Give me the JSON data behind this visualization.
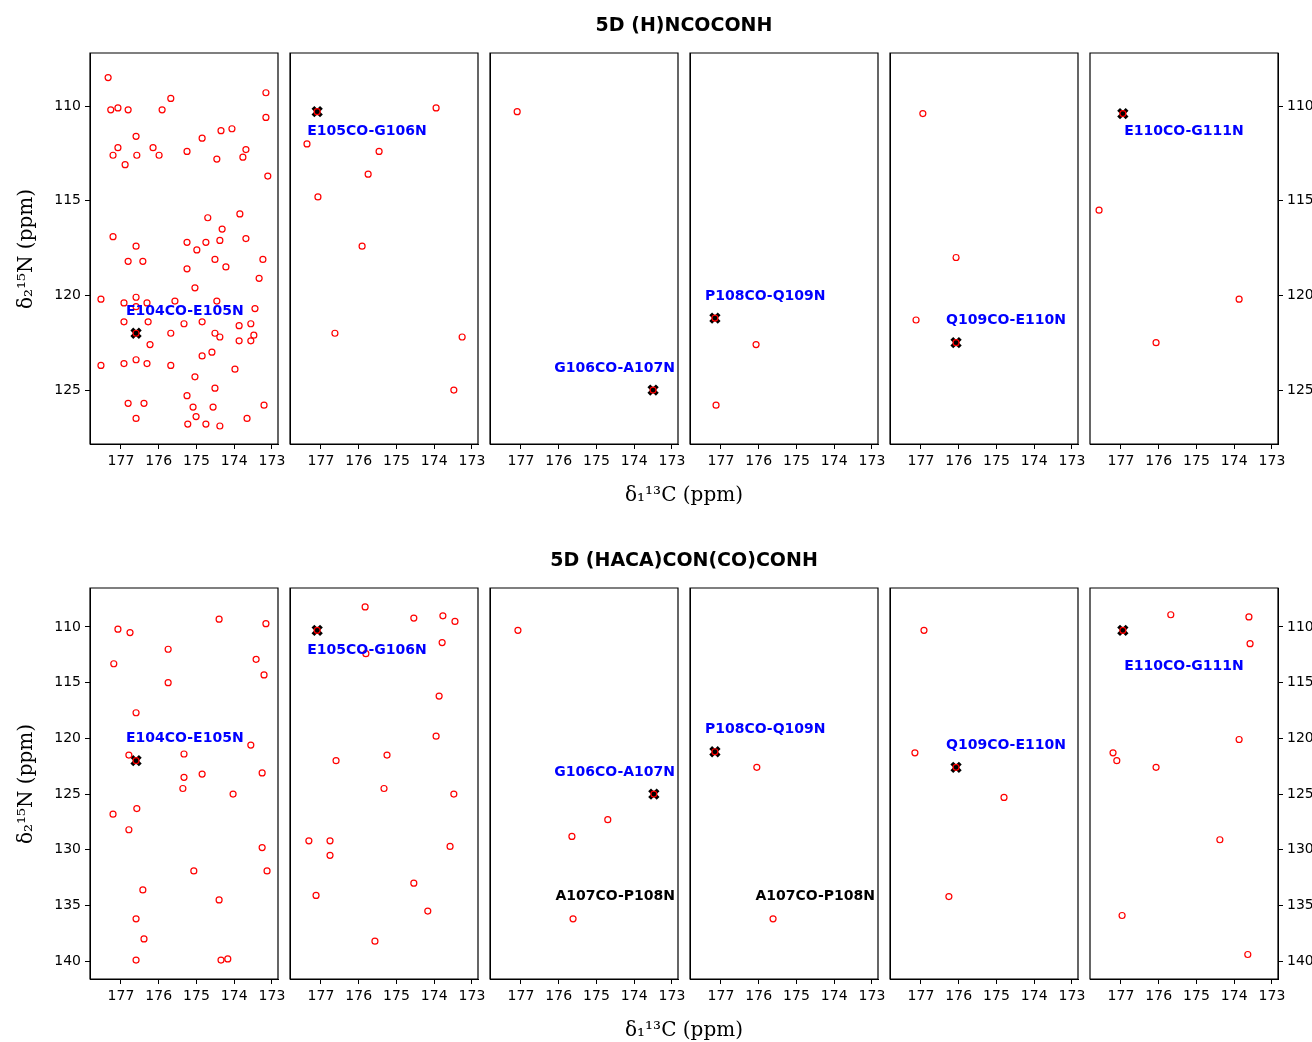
{
  "chart_data": [
    {
      "type": "scatter",
      "ylabel": "δ₂¹⁵N (ppm)",
      "xlim": [
        177.82,
        172.84
      ],
      "xticks": [
        177,
        176,
        175,
        174,
        173
      ],
      "ylim": [
        127.85,
        107.2
      ],
      "yticks": [
        110,
        115,
        120,
        125
      ],
      "series": [
        {
          "color": "#ff0000",
          "marker": "circle",
          "x": [
            177.34,
            177.08,
            177.27,
            176.81,
            175.91,
            175.68,
            173.16,
            173.16,
            174.35,
            174.06,
            174.85,
            176.6,
            177.08,
            176.15,
            177.21,
            176.58,
            175.99,
            175.25,
            174.46,
            173.69,
            173.77,
            176.89,
            173.11,
            174.7,
            173.85,
            174.32,
            177.21,
            176.6,
            175.25,
            174.75,
            174.99,
            174.38,
            173.69,
            176.81,
            176.42,
            175.25,
            174.51,
            174.22,
            173.24,
            173.34,
            175.04,
            177.53,
            176.92,
            176.6,
            176.6,
            176.31,
            175.57,
            174.46,
            173.45,
            176.92,
            176.28,
            175.33,
            174.85,
            173.87,
            173.56,
            176.6,
            175.68,
            174.51,
            174.38,
            173.48,
            173.87,
            173.56,
            176.23,
            174.85,
            174.59,
            177.53,
            176.92,
            176.6,
            176.31,
            175.68,
            173.98,
            175.04,
            174.51,
            175.25,
            176.81,
            176.39,
            175.09,
            174.56,
            173.21,
            175.01,
            176.6,
            173.66,
            175.23,
            174.75,
            174.38
          ],
          "values": [
            108.5,
            110.1,
            110.2,
            110.2,
            110.2,
            109.6,
            109.3,
            110.6,
            111.3,
            111.2,
            111.7,
            111.6,
            112.2,
            112.2,
            112.6,
            112.6,
            112.6,
            112.4,
            112.8,
            112.3,
            112.7,
            113.1,
            113.7,
            115.9,
            115.7,
            116.5,
            116.9,
            117.4,
            117.2,
            117.2,
            117.6,
            117.1,
            117.0,
            118.2,
            118.2,
            118.6,
            118.1,
            118.5,
            118.1,
            119.1,
            119.6,
            120.2,
            120.4,
            120.1,
            120.6,
            120.4,
            120.3,
            120.3,
            120.7,
            121.4,
            121.4,
            121.5,
            121.4,
            121.6,
            121.5,
            122.0,
            122.0,
            122.0,
            122.2,
            122.1,
            122.4,
            122.4,
            122.6,
            123.2,
            123.0,
            123.7,
            123.6,
            123.4,
            123.6,
            123.7,
            123.9,
            124.3,
            124.9,
            125.3,
            125.7,
            125.7,
            125.9,
            125.9,
            125.8,
            126.4,
            126.5,
            126.5,
            126.8,
            126.8,
            126.9
          ]
        },
        {
          "color": "#000000",
          "marker": "cross",
          "x": [
            176.6
          ],
          "values": [
            122.0
          ]
        }
      ],
      "annotations": [
        {
          "text": "E104CO-E105N",
          "x": 176.6,
          "y": 122.0
        }
      ]
    },
    {
      "type": "scatter",
      "xlim": [
        177.82,
        172.84
      ],
      "xticks": [
        177,
        176,
        175,
        174,
        173
      ],
      "ylim": [
        127.85,
        107.2
      ],
      "yticks": [
        110,
        115,
        120,
        125
      ],
      "tick_labels": "x",
      "series": [
        {
          "color": "#ff0000",
          "marker": "circle",
          "x": [
            177.1,
            177.37,
            175.46,
            175.75,
            177.08,
            175.91,
            176.63,
            173.26,
            173.48,
            173.95
          ],
          "values": [
            110.3,
            112.0,
            112.4,
            113.6,
            114.8,
            117.4,
            122.0,
            122.2,
            125.0,
            110.1
          ]
        },
        {
          "color": "#000000",
          "marker": "cross",
          "x": [
            177.1
          ],
          "values": [
            110.3
          ]
        }
      ],
      "annotations": [
        {
          "text": "E105CO-G106N",
          "x": 177.1,
          "y": 110.3
        }
      ]
    },
    {
      "type": "scatter",
      "xlabel": "δ₁¹³C (ppm)",
      "xlim": [
        177.82,
        172.84
      ],
      "xticks": [
        177,
        176,
        175,
        174,
        173
      ],
      "ylim": [
        127.85,
        107.2
      ],
      "yticks": [
        110,
        115,
        120,
        125
      ],
      "tick_labels": "x",
      "series": [
        {
          "color": "#ff0000",
          "marker": "circle",
          "x": [
            177.1,
            173.5
          ],
          "values": [
            110.3,
            125.0
          ]
        },
        {
          "color": "#000000",
          "marker": "cross",
          "x": [
            173.5
          ],
          "values": [
            125.0
          ]
        }
      ],
      "annotations": [
        {
          "text": "G106CO-A107N",
          "x": 173.5,
          "y": 125.0
        }
      ]
    },
    {
      "type": "scatter",
      "title": "5D (H)NCOCONH",
      "xlim": [
        177.82,
        172.84
      ],
      "xticks": [
        177,
        176,
        175,
        174,
        173
      ],
      "ylim": [
        127.85,
        107.2
      ],
      "yticks": [
        110,
        115,
        120,
        125
      ],
      "tick_labels": "x",
      "series": [
        {
          "color": "#ff0000",
          "marker": "circle",
          "x": [
            177.16,
            176.07,
            177.13
          ],
          "values": [
            121.2,
            122.6,
            125.8
          ]
        },
        {
          "color": "#000000",
          "marker": "cross",
          "x": [
            177.16
          ],
          "values": [
            121.2
          ]
        }
      ],
      "annotations": [
        {
          "text": "P108CO-Q109N",
          "x": 177.16,
          "y": 121.2
        }
      ]
    },
    {
      "type": "scatter",
      "xlim": [
        177.82,
        172.84
      ],
      "xticks": [
        177,
        176,
        175,
        174,
        173
      ],
      "ylim": [
        127.85,
        107.2
      ],
      "yticks": [
        110,
        115,
        120,
        125
      ],
      "tick_labels": "x",
      "series": [
        {
          "color": "#ff0000",
          "marker": "circle",
          "x": [
            176.95,
            176.07,
            177.13,
            176.07
          ],
          "values": [
            110.4,
            118.0,
            121.3,
            122.5
          ]
        },
        {
          "color": "#000000",
          "marker": "cross",
          "x": [
            176.07
          ],
          "values": [
            122.5
          ]
        }
      ],
      "annotations": [
        {
          "text": "Q109CO-E110N",
          "x": 176.07,
          "y": 122.5
        }
      ]
    },
    {
      "type": "scatter",
      "xlim": [
        177.82,
        172.84
      ],
      "xticks": [
        177,
        176,
        175,
        174,
        173
      ],
      "y2lim": [
        127.85,
        107.2
      ],
      "y2ticks": [
        110,
        115,
        120,
        125
      ],
      "series": [
        {
          "color": "#ff0000",
          "marker": "circle",
          "axis": "y2",
          "x": [
            176.95,
            177.58,
            173.87,
            176.07
          ],
          "values": [
            110.4,
            115.5,
            120.2,
            122.5
          ]
        },
        {
          "color": "#000000",
          "marker": "cross",
          "axis": "y2",
          "x": [
            176.95
          ],
          "values": [
            110.4
          ]
        }
      ],
      "annotations": [
        "E110CO-G111N"
      ]
    },
    {
      "type": "scatter",
      "ylabel": "δ₂¹⁵N (ppm)",
      "xlim": [
        177.82,
        172.84
      ],
      "xticks": [
        177,
        176,
        175,
        174,
        173
      ],
      "ylim": [
        141.6,
        106.5
      ],
      "yticks": [
        110,
        115,
        120,
        125,
        130,
        135,
        140
      ],
      "series": [
        {
          "color": "#ff0000",
          "marker": "circle",
          "x": [
            177.08,
            176.76,
            174.4,
            173.16,
            175.75,
            177.19,
            173.42,
            173.21,
            175.75,
            176.6,
            173.56,
            176.79,
            176.6,
            175.33,
            174.85,
            175.33,
            175.36,
            173.26,
            174.03,
            176.58,
            177.21,
            176.79,
            173.26,
            173.13,
            175.07,
            176.42,
            174.4,
            176.6,
            176.39,
            176.6,
            174.35,
            174.17
          ],
          "values": [
            110.2,
            110.5,
            109.3,
            109.7,
            112.0,
            113.3,
            112.9,
            114.3,
            115.0,
            117.7,
            120.6,
            121.5,
            122.0,
            121.4,
            123.2,
            123.5,
            124.5,
            123.1,
            125.0,
            126.3,
            126.8,
            128.2,
            129.8,
            131.9,
            131.9,
            133.6,
            134.5,
            136.2,
            138.0,
            139.9,
            139.9,
            139.8
          ]
        },
        {
          "color": "#000000",
          "marker": "cross",
          "x": [
            176.6
          ],
          "values": [
            122.0
          ]
        }
      ],
      "annotations": [
        {
          "text": "E104CO-E105N",
          "x": 176.6,
          "y": 122.0
        }
      ]
    },
    {
      "type": "scatter",
      "xlim": [
        177.82,
        172.84
      ],
      "xticks": [
        177,
        176,
        175,
        174,
        173
      ],
      "ylim": [
        141.6,
        106.5
      ],
      "yticks": [
        110,
        115,
        120,
        125,
        130,
        135,
        140
      ],
      "tick_labels": "x",
      "series": [
        {
          "color": "#ff0000",
          "marker": "circle",
          "x": [
            177.1,
            175.83,
            174.54,
            173.77,
            173.45,
            173.79,
            175.81,
            173.87,
            173.95,
            176.6,
            175.25,
            175.33,
            173.48,
            177.32,
            176.76,
            176.76,
            173.58,
            174.54,
            177.13,
            174.17,
            175.57
          ],
          "values": [
            110.3,
            108.2,
            109.2,
            109.0,
            109.5,
            111.4,
            112.4,
            116.2,
            119.8,
            122.0,
            121.5,
            124.5,
            125.0,
            129.2,
            129.2,
            130.5,
            129.7,
            133.0,
            134.1,
            135.5,
            138.2
          ]
        },
        {
          "color": "#000000",
          "marker": "cross",
          "x": [
            177.1
          ],
          "values": [
            110.3
          ]
        }
      ],
      "annotations": [
        {
          "text": "E105CO-G106N",
          "x": 177.1,
          "y": 110.3
        }
      ]
    },
    {
      "type": "scatter",
      "xlabel": "δ₁¹³C (ppm)",
      "xlim": [
        177.82,
        172.84
      ],
      "xticks": [
        177,
        176,
        175,
        174,
        173
      ],
      "ylim": [
        141.6,
        106.5
      ],
      "yticks": [
        110,
        115,
        120,
        125,
        130,
        135,
        140
      ],
      "tick_labels": "x",
      "series": [
        {
          "color": "#ff0000",
          "marker": "circle",
          "x": [
            177.08,
            173.48,
            174.7,
            175.65,
            175.62
          ],
          "values": [
            110.3,
            125.0,
            127.3,
            128.8,
            136.2
          ]
        },
        {
          "color": "#000000",
          "marker": "cross",
          "x": [
            173.48
          ],
          "values": [
            125.0
          ]
        }
      ],
      "annotations": [
        {
          "text": "G106CO-A107N",
          "x": 173.48,
          "y": 125.0
        },
        {
          "text": "A107CO-P108N",
          "x": 175.62,
          "y": 136.2
        }
      ]
    },
    {
      "type": "scatter",
      "title": "5D (HACA)CON(CO)CONH",
      "xlim": [
        177.82,
        172.84
      ],
      "xticks": [
        177,
        176,
        175,
        174,
        173
      ],
      "ylim": [
        141.6,
        106.5
      ],
      "yticks": [
        110,
        115,
        120,
        125,
        130,
        135,
        140
      ],
      "tick_labels": "x",
      "series": [
        {
          "color": "#ff0000",
          "marker": "circle",
          "x": [
            177.16,
            176.05,
            175.62
          ],
          "values": [
            121.2,
            122.6,
            136.2
          ]
        },
        {
          "color": "#000000",
          "marker": "cross",
          "x": [
            177.16
          ],
          "values": [
            121.2
          ]
        }
      ],
      "annotations": [
        {
          "text": "P108CO-Q109N",
          "x": 177.16,
          "y": 121.2
        },
        {
          "text": "A107CO-P108N",
          "x": 175.62,
          "y": 136.2
        }
      ]
    },
    {
      "type": "scatter",
      "xlim": [
        177.82,
        172.84
      ],
      "xticks": [
        177,
        176,
        175,
        174,
        173
      ],
      "ylim": [
        141.6,
        106.5
      ],
      "yticks": [
        110,
        115,
        120,
        125,
        130,
        135,
        140
      ],
      "tick_labels": "x",
      "series": [
        {
          "color": "#ff0000",
          "marker": "circle",
          "x": [
            176.92,
            177.16,
            176.07,
            174.8,
            176.26
          ],
          "values": [
            110.3,
            121.3,
            122.6,
            125.3,
            134.2
          ]
        },
        {
          "color": "#000000",
          "marker": "cross",
          "x": [
            176.07
          ],
          "values": [
            122.6
          ]
        }
      ],
      "annotations": [
        {
          "text": "Q109CO-E110N",
          "x": 176.07,
          "y": 122.6
        }
      ]
    },
    {
      "type": "scatter",
      "xlim": [
        177.82,
        172.84
      ],
      "xticks": [
        177,
        176,
        175,
        174,
        173
      ],
      "y2lim": [
        141.6,
        106.5
      ],
      "y2ticks": [
        110,
        115,
        120,
        125,
        130,
        135,
        140
      ],
      "series": [
        {
          "color": "#ff0000",
          "marker": "circle",
          "axis": "y2",
          "x": [
            176.95,
            175.68,
            173.61,
            173.58,
            173.87,
            177.21,
            177.11,
            176.07,
            174.38,
            176.97,
            173.64
          ],
          "values": [
            110.3,
            108.9,
            109.1,
            111.5,
            120.1,
            121.3,
            122.0,
            122.6,
            129.1,
            135.9,
            139.4
          ]
        },
        {
          "color": "#000000",
          "marker": "cross",
          "axis": "y2",
          "x": [
            176.95
          ],
          "values": [
            110.3
          ]
        }
      ],
      "annotations": [
        "E110CO-G111N"
      ]
    }
  ]
}
